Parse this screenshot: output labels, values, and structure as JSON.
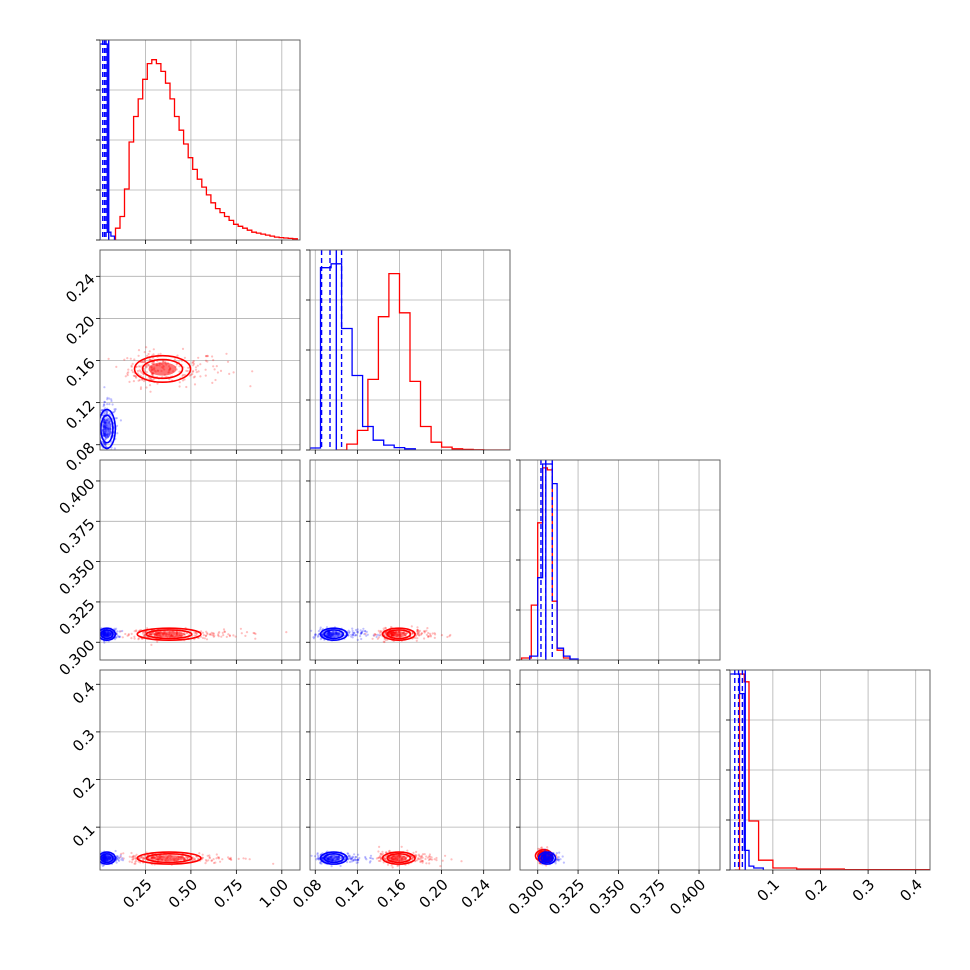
{
  "chart_data": {
    "type": "corner",
    "colors": {
      "series_a": "#0000ff",
      "series_b": "#ff0000",
      "grid": "#b0b0b0"
    },
    "grid": true,
    "params": [
      {
        "range": [
          0.0,
          1.1
        ],
        "ticks": [
          0.25,
          0.5,
          0.75,
          1.0
        ],
        "tick_labels": [
          "0.25",
          "0.50",
          "0.75",
          "1.00"
        ]
      },
      {
        "range": [
          0.075,
          0.265
        ],
        "ticks": [
          0.08,
          0.12,
          0.16,
          0.2,
          0.24
        ],
        "tick_labels": [
          "0.08",
          "0.12",
          "0.16",
          "0.20",
          "0.24"
        ]
      },
      {
        "range": [
          0.289,
          0.413
        ],
        "ticks": [
          0.3,
          0.325,
          0.35,
          0.375,
          0.4
        ],
        "tick_labels": [
          "0.300",
          "0.325",
          "0.350",
          "0.375",
          "0.400"
        ]
      },
      {
        "range": [
          0.01,
          0.43
        ],
        "ticks": [
          0.1,
          0.2,
          0.3,
          0.4
        ],
        "tick_labels": [
          "0.1",
          "0.2",
          "0.3",
          "0.4"
        ]
      }
    ],
    "histograms": [
      {
        "blue": {
          "bins": [
            0.0,
            0.02,
            0.04,
            0.06,
            0.08
          ],
          "counts": [
            1.0,
            1.0,
            0.04,
            0.02
          ],
          "quantiles": [
            0.015,
            0.025,
            0.033
          ],
          "quantile_solid": 0.048
        },
        "red": {
          "bins": [
            0.085,
            0.11,
            0.135,
            0.16,
            0.185,
            0.21,
            0.235,
            0.26,
            0.285,
            0.31,
            0.335,
            0.36,
            0.385,
            0.41,
            0.435,
            0.46,
            0.485,
            0.51,
            0.535,
            0.56,
            0.585,
            0.61,
            0.635,
            0.66,
            0.685,
            0.71,
            0.735,
            0.76,
            0.785,
            0.81,
            0.835,
            0.86,
            0.885,
            0.91,
            0.935,
            0.96,
            0.985,
            1.01,
            1.035,
            1.06,
            1.085
          ],
          "counts": [
            0.06,
            0.12,
            0.26,
            0.5,
            0.63,
            0.72,
            0.82,
            0.9,
            0.92,
            0.9,
            0.86,
            0.8,
            0.72,
            0.63,
            0.56,
            0.49,
            0.42,
            0.36,
            0.31,
            0.27,
            0.23,
            0.19,
            0.16,
            0.14,
            0.12,
            0.1,
            0.08,
            0.07,
            0.06,
            0.05,
            0.04,
            0.035,
            0.03,
            0.025,
            0.02,
            0.015,
            0.012,
            0.01,
            0.008,
            0.006
          ]
        }
      },
      {
        "blue": {
          "bins": [
            0.075,
            0.085,
            0.095,
            0.105,
            0.115,
            0.125,
            0.135,
            0.145,
            0.155,
            0.165,
            0.175
          ],
          "counts": [
            0.01,
            0.93,
            0.95,
            0.62,
            0.38,
            0.12,
            0.05,
            0.025,
            0.012,
            0.006
          ]
        },
        "blue_quantiles": [
          0.086,
          0.094,
          0.105
        ],
        "blue_quantile_solid": 0.1,
        "red": {
          "bins": [
            0.1,
            0.11,
            0.12,
            0.13,
            0.14,
            0.15,
            0.16,
            0.17,
            0.18,
            0.19,
            0.2,
            0.21,
            0.22,
            0.23,
            0.24,
            0.265
          ],
          "counts": [
            0.0,
            0.03,
            0.1,
            0.36,
            0.68,
            0.9,
            0.7,
            0.35,
            0.12,
            0.04,
            0.015,
            0.006,
            0.003,
            0.001,
            0.0
          ]
        }
      },
      {
        "blue": {
          "bins": [
            0.295,
            0.3,
            0.303,
            0.306,
            0.309,
            0.312,
            0.316,
            0.32,
            0.325
          ],
          "counts": [
            0.02,
            0.42,
            1.0,
            1.0,
            0.9,
            0.06,
            0.02,
            0.005
          ]
        },
        "blue_quantiles": [
          0.302,
          0.305,
          0.309
        ],
        "blue_quantile_solid": 0.305,
        "red": {
          "bins": [
            0.29,
            0.296,
            0.3,
            0.303,
            0.306,
            0.309,
            0.312,
            0.316,
            0.32
          ],
          "counts": [
            0.01,
            0.28,
            0.7,
            0.98,
            0.97,
            0.3,
            0.05,
            0.01
          ]
        }
      },
      {
        "blue": {
          "bins": [
            0.01,
            0.02,
            0.03,
            0.04,
            0.05,
            0.06,
            0.08
          ],
          "counts": [
            1.0,
            1.0,
            0.9,
            0.1,
            0.02,
            0.01
          ]
        },
        "blue_quantiles": [
          0.02,
          0.028,
          0.036
        ],
        "blue_quantile_solid": 0.042,
        "red": {
          "bins": [
            0.02,
            0.03,
            0.04,
            0.05,
            0.07,
            0.1,
            0.15,
            0.25,
            0.43
          ],
          "counts": [
            0.0,
            1.0,
            0.96,
            0.25,
            0.05,
            0.01,
            0.005,
            0.002
          ]
        }
      }
    ],
    "blobs": [
      {
        "row": 1,
        "col": 0,
        "blue": {
          "center": [
            0.03,
            0.095
          ],
          "spread": [
            0.04,
            0.022
          ]
        },
        "red": {
          "center": [
            0.3,
            0.152
          ],
          "spread": [
            0.22,
            0.015
          ]
        }
      },
      {
        "row": 2,
        "col": 0,
        "blue": {
          "center": [
            0.03,
            0.305
          ],
          "spread": [
            0.04,
            0.003
          ]
        },
        "red": {
          "center": [
            0.33,
            0.305
          ],
          "spread": [
            0.25,
            0.003
          ]
        }
      },
      {
        "row": 2,
        "col": 1,
        "blue": {
          "center": [
            0.094,
            0.305
          ],
          "spread": [
            0.018,
            0.003
          ]
        },
        "red": {
          "center": [
            0.155,
            0.305
          ],
          "spread": [
            0.022,
            0.003
          ]
        }
      },
      {
        "row": 3,
        "col": 0,
        "blue": {
          "center": [
            0.03,
            0.035
          ],
          "spread": [
            0.04,
            0.01
          ]
        },
        "red": {
          "center": [
            0.33,
            0.035
          ],
          "spread": [
            0.25,
            0.01
          ]
        }
      },
      {
        "row": 3,
        "col": 1,
        "blue": {
          "center": [
            0.094,
            0.035
          ],
          "spread": [
            0.018,
            0.01
          ]
        },
        "red": {
          "center": [
            0.155,
            0.035
          ],
          "spread": [
            0.022,
            0.012
          ]
        }
      },
      {
        "row": 3,
        "col": 2,
        "blue": {
          "center": [
            0.305,
            0.035
          ],
          "spread": [
            0.004,
            0.01
          ]
        },
        "red": {
          "center": [
            0.303,
            0.04
          ],
          "spread": [
            0.004,
            0.012
          ]
        }
      }
    ]
  }
}
